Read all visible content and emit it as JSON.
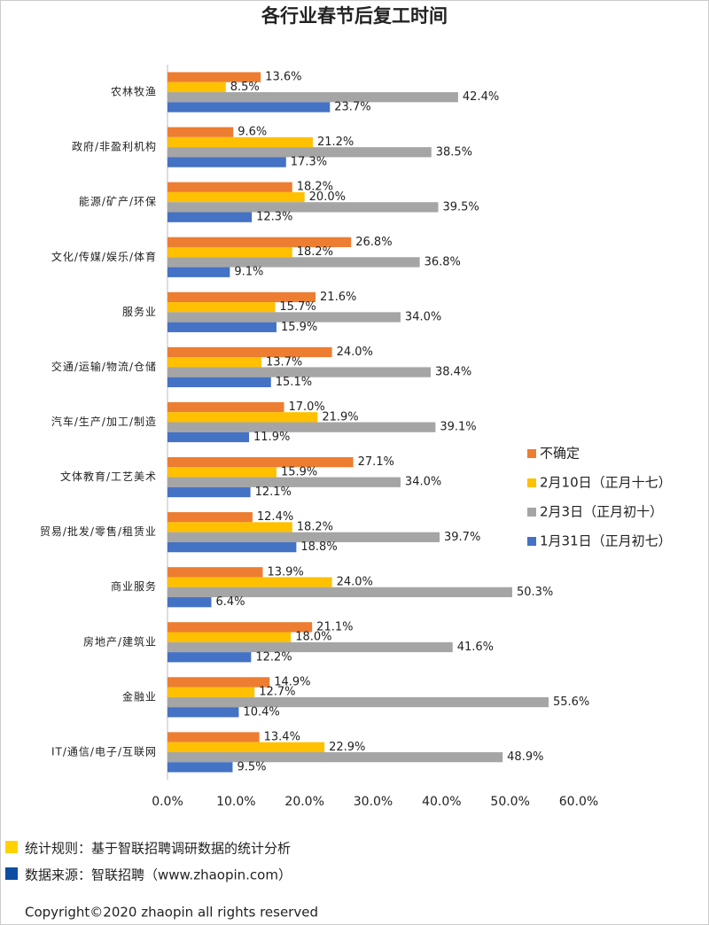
{
  "chart_data": {
    "type": "hbar",
    "title": "各行业春节后复工时间",
    "categories": [
      "农林牧渔",
      "政府/非盈利机构",
      "能源/矿产/环保",
      "文化/传媒/娱乐/体育",
      "服务业",
      "交通/运输/物流/仓储",
      "汽车/生产/加工/制造",
      "文体教育/工艺美术",
      "贸易/批发/零售/租赁业",
      "商业服务",
      "房地产/建筑业",
      "金融业",
      "IT/通信/电子/互联网"
    ],
    "series": [
      {
        "name": "不确定",
        "color": "#ED7D31",
        "values": [
          13.6,
          9.6,
          18.2,
          26.8,
          21.6,
          24.0,
          17.0,
          27.1,
          12.4,
          13.9,
          21.1,
          14.9,
          13.4
        ],
        "value_labels": [
          "13.6%",
          "9.6%",
          "18.2%",
          "26.8%",
          "21.6%",
          "24.0%",
          "17.0%",
          "27.1%",
          "12.4%",
          "13.9%",
          "21.1%",
          "14.9%",
          "13.4%"
        ]
      },
      {
        "name": "2月10日（正月十七）",
        "color": "#FFC000",
        "values": [
          8.5,
          21.2,
          20.0,
          18.2,
          15.7,
          13.7,
          21.9,
          15.9,
          18.2,
          24.0,
          18.0,
          12.7,
          22.9
        ],
        "value_labels": [
          "8.5%",
          "21.2%",
          "20.0%",
          "18.2%",
          "15.7%",
          "13.7%",
          "21.9%",
          "15.9%",
          "18.2%",
          "24.0%",
          "18.0%",
          "12.7%",
          "22.9%"
        ]
      },
      {
        "name": "2月3日（正月初十）",
        "color": "#A5A5A5",
        "values": [
          42.4,
          38.5,
          39.5,
          36.8,
          34.0,
          38.4,
          39.1,
          34.0,
          39.7,
          50.3,
          41.6,
          55.6,
          48.9
        ],
        "value_labels": [
          "42.4%",
          "38.5%",
          "39.5%",
          "36.8%",
          "34.0%",
          "38.4%",
          "39.1%",
          "34.0%",
          "39.7%",
          "50.3%",
          "41.6%",
          "55.6%",
          "48.9%"
        ]
      },
      {
        "name": "1月31日（正月初七）",
        "color": "#4472C4",
        "values": [
          23.7,
          17.3,
          12.3,
          9.1,
          15.9,
          15.1,
          11.9,
          12.1,
          18.8,
          6.4,
          12.2,
          10.4,
          9.5
        ],
        "value_labels": [
          "23.7%",
          "17.3%",
          "12.3%",
          "9.1%",
          "15.9%",
          "15.1%",
          "11.9%",
          "12.1%",
          "18.8%",
          "6.4%",
          "12.2%",
          "10.4%",
          "9.5%"
        ]
      }
    ],
    "xlim": [
      0,
      60
    ],
    "xticks": [
      {
        "value": 0,
        "label": "0.0%"
      },
      {
        "value": 10,
        "label": "10.0%"
      },
      {
        "value": 20,
        "label": "20.0%"
      },
      {
        "value": 30,
        "label": "30.0%"
      },
      {
        "value": 40,
        "label": "40.0%"
      },
      {
        "value": 50,
        "label": "50.0%"
      },
      {
        "value": 60,
        "label": "60.0%"
      }
    ],
    "grid": false,
    "legend": "right",
    "notes": [
      "统计规则：基于智联招聘调研数据的统计分析",
      "数据来源：智联招聘（www.zhaopin.com）"
    ],
    "footer": "Copyright©2020 zhaopin all rights reserved"
  }
}
